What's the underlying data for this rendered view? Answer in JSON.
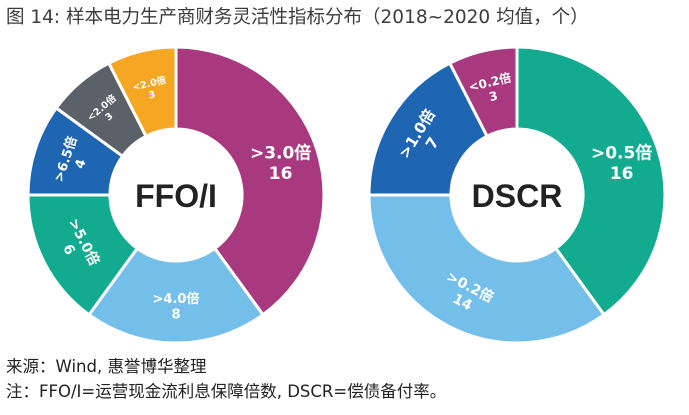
{
  "title": "图 14: 样本电力生产商财务灵活性指标分布（2018~2020 均值，个）",
  "source": "来源：Wind, 惠誉博华整理",
  "note": "注：FFO/I=运营现金流利息保障倍数, DSCR=偿债备付率。",
  "chart_data": [
    {
      "type": "pie",
      "variant": "donut",
      "center_label": "FFO/I",
      "slices": [
        {
          "label": ">3.0倍",
          "value": 16,
          "color": "#a8397f"
        },
        {
          "label": ">4.0倍",
          "value": 8,
          "color": "#74bfe9"
        },
        {
          "label": ">5.0倍",
          "value": 6,
          "color": "#12ab8f"
        },
        {
          "label": ">6.5倍",
          "value": 4,
          "color": "#1f66b2"
        },
        {
          "label": "<2.0倍",
          "value": 3,
          "color": "#5b6168"
        },
        {
          "label": "<2.0倍",
          "value": 3,
          "color": "#f5a623"
        }
      ]
    },
    {
      "type": "pie",
      "variant": "donut",
      "center_label": "DSCR",
      "slices": [
        {
          "label": ">0.5倍",
          "value": 16,
          "color": "#12ab8f"
        },
        {
          "label": ">0.2倍",
          "value": 14,
          "color": "#74bfe9"
        },
        {
          "label": ">1.0倍",
          "value": 7,
          "color": "#1f66b2"
        },
        {
          "label": "<0.2倍",
          "value": 3,
          "color": "#a8397f"
        }
      ]
    }
  ]
}
